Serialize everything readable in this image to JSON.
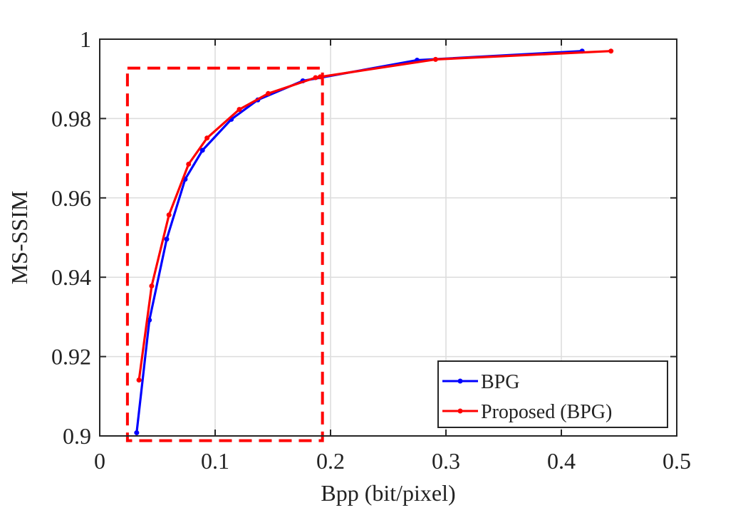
{
  "chart_data": {
    "type": "line",
    "title": "",
    "xlabel": "Bpp (bit/pixel)",
    "ylabel": "MS-SSIM",
    "xlim": [
      0,
      0.5
    ],
    "ylim": [
      0.9,
      1
    ],
    "xticks": [
      0,
      0.1,
      0.2,
      0.3,
      0.4,
      0.5
    ],
    "xtick_labels": [
      "0",
      "0.1",
      "0.2",
      "0.3",
      "0.4",
      "0.5"
    ],
    "yticks": [
      0.9,
      0.92,
      0.94,
      0.96,
      0.98,
      1
    ],
    "ytick_labels": [
      "0.9",
      "0.92",
      "0.94",
      "0.96",
      "0.98",
      "1"
    ],
    "grid": true,
    "legend_position": "bottom-right",
    "series": [
      {
        "name": "BPG",
        "color": "#0000ff",
        "x": [
          0.032,
          0.043,
          0.058,
          0.074,
          0.089,
          0.114,
          0.137,
          0.176,
          0.275,
          0.418
        ],
        "y": [
          0.9008,
          0.9292,
          0.9496,
          0.9647,
          0.972,
          0.9798,
          0.9847,
          0.9895,
          0.9947,
          0.997
        ]
      },
      {
        "name": "Proposed (BPG)",
        "color": "#ff0000",
        "x": [
          0.034,
          0.045,
          0.06,
          0.077,
          0.093,
          0.121,
          0.146,
          0.187,
          0.191,
          0.291,
          0.443
        ],
        "y": [
          0.9141,
          0.9378,
          0.9557,
          0.9685,
          0.9751,
          0.9823,
          0.9863,
          0.9903,
          0.9905,
          0.9949,
          0.997
        ]
      }
    ],
    "annotations": [
      {
        "type": "dashed-rectangle",
        "color": "#ff0000",
        "x_range": [
          0.024,
          0.193
        ],
        "y_range": [
          0.8988,
          0.9927
        ]
      }
    ]
  }
}
